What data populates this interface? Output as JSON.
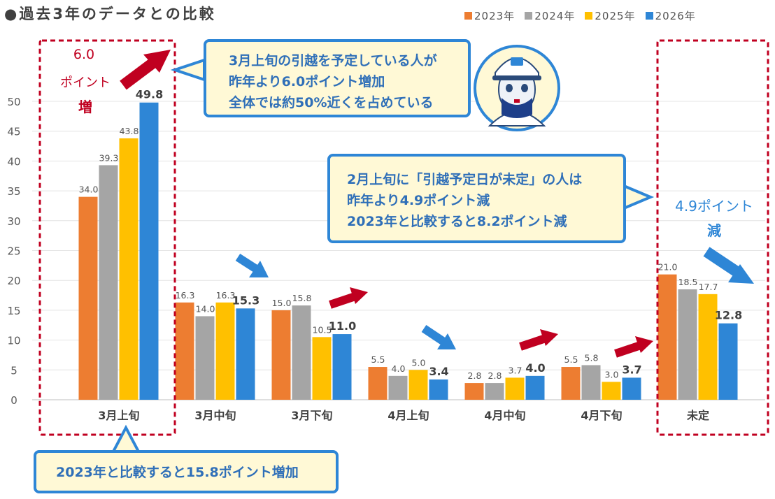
{
  "title": "●過去3年のデータとの比較",
  "legend": [
    "2023年",
    "2024年",
    "2025年",
    "2026年"
  ],
  "colors": {
    "s2023": "#ed7d31",
    "s2024": "#a5a5a5",
    "s2025": "#ffc000",
    "s2026": "#2e86d6",
    "red": "#c00020",
    "blue": "#2e86d6"
  },
  "chart_data": {
    "type": "bar",
    "categories": [
      "3月上旬",
      "3月中旬",
      "3月下旬",
      "4月上旬",
      "4月中旬",
      "4月下旬",
      "未定"
    ],
    "series": [
      {
        "name": "2023年",
        "values": [
          34.0,
          16.3,
          15.0,
          5.5,
          2.8,
          5.5,
          21.0
        ]
      },
      {
        "name": "2024年",
        "values": [
          39.3,
          14.0,
          15.8,
          4.0,
          2.8,
          5.8,
          18.5
        ]
      },
      {
        "name": "2025年",
        "values": [
          43.8,
          16.3,
          10.5,
          5.0,
          3.7,
          3.0,
          17.7
        ]
      },
      {
        "name": "2026年",
        "values": [
          49.8,
          15.3,
          11.0,
          3.4,
          4.0,
          3.7,
          12.8
        ]
      }
    ],
    "ylim": [
      0,
      50
    ],
    "yticks": [
      0,
      5,
      10,
      15,
      20,
      25,
      30,
      35,
      40,
      45,
      50
    ],
    "grid": true,
    "legend_position": "top-right"
  },
  "annotations": {
    "left_change_value": "6.0",
    "left_change_label": "ポイント",
    "left_change_suffix": "増",
    "right_change_value": "4.9ポイント",
    "right_change_suffix": "減"
  },
  "callouts": {
    "top": [
      "3月上旬の引越を予定している人が",
      "昨年より6.0ポイント増加",
      "全体では約50%近くを占めている"
    ],
    "middle": [
      "2月上旬に「引越予定日が未定」の人は",
      "昨年より4.9ポイント減",
      "2023年と比較すると8.2ポイント減"
    ],
    "bottom": [
      "2023年と比較すると15.8ポイント増加"
    ]
  }
}
